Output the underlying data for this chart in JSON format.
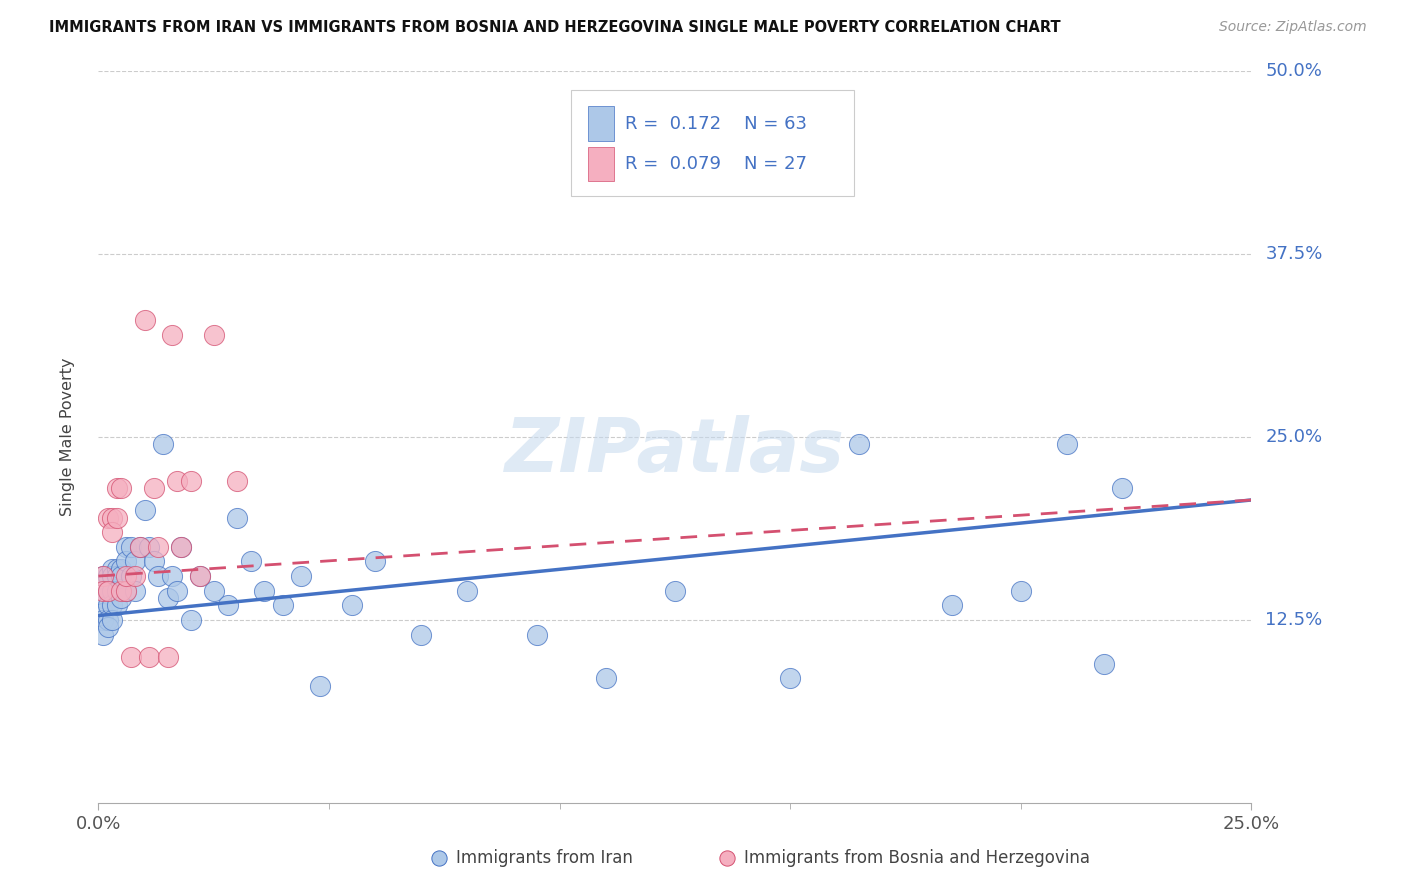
{
  "title": "IMMIGRANTS FROM IRAN VS IMMIGRANTS FROM BOSNIA AND HERZEGOVINA SINGLE MALE POVERTY CORRELATION CHART",
  "source": "Source: ZipAtlas.com",
  "ylabel": "Single Male Poverty",
  "x_range": [
    0,
    0.25
  ],
  "y_range": [
    0,
    0.5
  ],
  "legend_label_1": "Immigrants from Iran",
  "legend_label_2": "Immigrants from Bosnia and Herzegovina",
  "R1": "0.172",
  "N1": "63",
  "R2": "0.079",
  "N2": "27",
  "color_iran_fill": "#adc8e8",
  "color_iran_edge": "#4472C4",
  "color_bosnia_fill": "#f5afc0",
  "color_bosnia_edge": "#d45070",
  "iran_x": [
    0.001,
    0.001,
    0.001,
    0.001,
    0.001,
    0.002,
    0.002,
    0.002,
    0.002,
    0.002,
    0.003,
    0.003,
    0.003,
    0.003,
    0.003,
    0.004,
    0.004,
    0.004,
    0.004,
    0.005,
    0.005,
    0.005,
    0.006,
    0.006,
    0.006,
    0.007,
    0.007,
    0.008,
    0.008,
    0.009,
    0.01,
    0.011,
    0.012,
    0.013,
    0.014,
    0.015,
    0.016,
    0.017,
    0.018,
    0.02,
    0.022,
    0.025,
    0.028,
    0.03,
    0.033,
    0.036,
    0.04,
    0.044,
    0.048,
    0.055,
    0.06,
    0.07,
    0.08,
    0.095,
    0.11,
    0.125,
    0.15,
    0.165,
    0.185,
    0.2,
    0.21,
    0.218,
    0.222
  ],
  "iran_y": [
    0.155,
    0.14,
    0.13,
    0.125,
    0.115,
    0.155,
    0.145,
    0.135,
    0.125,
    0.12,
    0.16,
    0.155,
    0.145,
    0.135,
    0.125,
    0.16,
    0.155,
    0.145,
    0.135,
    0.16,
    0.155,
    0.14,
    0.175,
    0.165,
    0.145,
    0.175,
    0.155,
    0.165,
    0.145,
    0.175,
    0.2,
    0.175,
    0.165,
    0.155,
    0.245,
    0.14,
    0.155,
    0.145,
    0.175,
    0.125,
    0.155,
    0.145,
    0.135,
    0.195,
    0.165,
    0.145,
    0.135,
    0.155,
    0.08,
    0.135,
    0.165,
    0.115,
    0.145,
    0.115,
    0.085,
    0.145,
    0.085,
    0.245,
    0.135,
    0.145,
    0.245,
    0.095,
    0.215
  ],
  "bosnia_x": [
    0.001,
    0.001,
    0.002,
    0.002,
    0.003,
    0.003,
    0.004,
    0.004,
    0.005,
    0.005,
    0.006,
    0.006,
    0.007,
    0.008,
    0.009,
    0.01,
    0.011,
    0.012,
    0.013,
    0.015,
    0.016,
    0.017,
    0.018,
    0.02,
    0.022,
    0.025,
    0.03
  ],
  "bosnia_y": [
    0.155,
    0.145,
    0.195,
    0.145,
    0.195,
    0.185,
    0.215,
    0.195,
    0.145,
    0.215,
    0.145,
    0.155,
    0.1,
    0.155,
    0.175,
    0.33,
    0.1,
    0.215,
    0.175,
    0.1,
    0.32,
    0.22,
    0.175,
    0.22,
    0.155,
    0.32,
    0.22
  ],
  "iran_line_x0": 0.0,
  "iran_line_y0": 0.128,
  "iran_line_x1": 0.25,
  "iran_line_y1": 0.207,
  "bos_line_x0": 0.0,
  "bos_line_y0": 0.155,
  "bos_line_x1": 0.25,
  "bos_line_y1": 0.207
}
